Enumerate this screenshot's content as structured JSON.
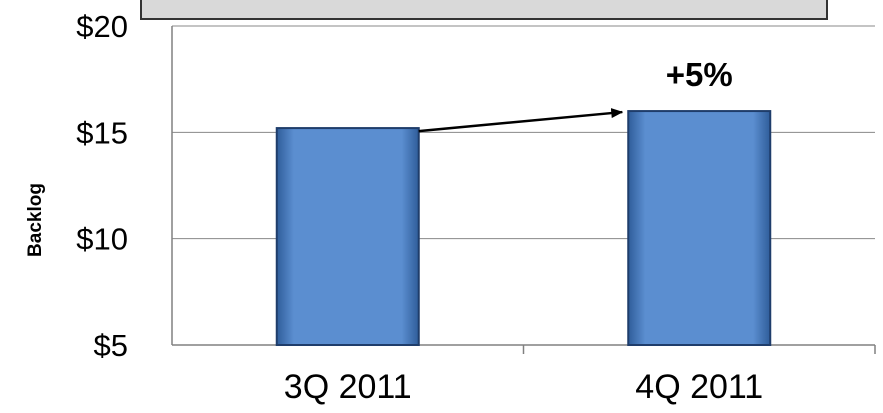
{
  "colors": {
    "bar_fill": "#5b8ed0",
    "bar_stroke": "#1f3d6b",
    "gridline": "#888888",
    "axis": "#808080",
    "title_box_fill": "#d9d9d9",
    "title_box_stroke": "#333333",
    "arrow": "#000000"
  },
  "chart_data": {
    "type": "bar",
    "title": "",
    "categories": [
      "3Q 2011",
      "4Q 2011"
    ],
    "values": [
      15.2,
      16.0
    ],
    "ylabel": "Backlog",
    "xlabel": "",
    "ylim": [
      5,
      20
    ],
    "yticks": [
      5,
      10,
      15,
      20
    ],
    "ytick_labels": [
      "$5",
      "$10",
      "$15",
      "$20"
    ],
    "grid": true,
    "annotations": [
      {
        "text": "+5%",
        "from_category": 0,
        "to_category": 1,
        "style": "arrow"
      }
    ]
  }
}
